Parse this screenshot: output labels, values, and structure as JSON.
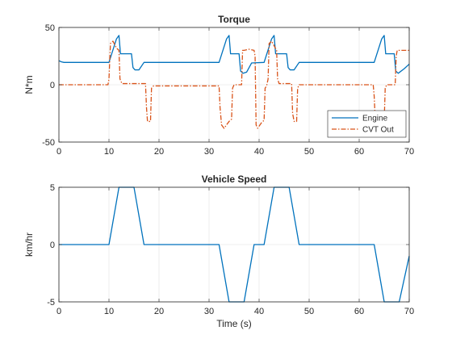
{
  "figure": {
    "background": "#ffffff",
    "grid_color": "#dfdfdf",
    "axis_color": "#262626"
  },
  "chart_data": [
    {
      "type": "line",
      "title": "Torque",
      "xlabel": "",
      "ylabel": "N*m",
      "xlim": [
        0,
        70
      ],
      "ylim": [
        -50,
        50
      ],
      "xticks": [
        0,
        10,
        20,
        30,
        40,
        50,
        60,
        70
      ],
      "yticks": [
        -50,
        0,
        50
      ],
      "grid": true,
      "legend": {
        "placement": "bottom-right",
        "entries": [
          "Engine",
          "CVT Out"
        ]
      },
      "series": [
        {
          "name": "Engine",
          "color": "#0072BD",
          "style": "solid",
          "points": [
            [
              0,
              21
            ],
            [
              0.5,
              20
            ],
            [
              1,
              19.5
            ],
            [
              10,
              19.5
            ],
            [
              11.5,
              40
            ],
            [
              12,
              43
            ],
            [
              12.3,
              27
            ],
            [
              14.5,
              27
            ],
            [
              14.8,
              15
            ],
            [
              15.2,
              13
            ],
            [
              16,
              13
            ],
            [
              17,
              19.5
            ],
            [
              32,
              19.5
            ],
            [
              33.5,
              40
            ],
            [
              34,
              43
            ],
            [
              34.3,
              27
            ],
            [
              36,
              27
            ],
            [
              36.3,
              12
            ],
            [
              36.8,
              10
            ],
            [
              37.5,
              11
            ],
            [
              38.5,
              19
            ],
            [
              41,
              19.5
            ],
            [
              42.5,
              40
            ],
            [
              43,
              43
            ],
            [
              43.3,
              27
            ],
            [
              45.5,
              27
            ],
            [
              45.8,
              15
            ],
            [
              46.2,
              13
            ],
            [
              47,
              13
            ],
            [
              48,
              19.5
            ],
            [
              63,
              19.5
            ],
            [
              64.5,
              40
            ],
            [
              65,
              43
            ],
            [
              65.3,
              27
            ],
            [
              67,
              27
            ],
            [
              67.3,
              12
            ],
            [
              67.8,
              10
            ],
            [
              69,
              14
            ],
            [
              70,
              18
            ]
          ]
        },
        {
          "name": "CVT Out",
          "color": "#D95319",
          "style": "dashdot",
          "points": [
            [
              0,
              0
            ],
            [
              9.8,
              0
            ],
            [
              10,
              5
            ],
            [
              10.3,
              36
            ],
            [
              10.8,
              38
            ],
            [
              11.5,
              32
            ],
            [
              12,
              30
            ],
            [
              12.2,
              5
            ],
            [
              12.6,
              1
            ],
            [
              17.3,
              1
            ],
            [
              17.5,
              -20
            ],
            [
              17.7,
              -32
            ],
            [
              18.3,
              -32
            ],
            [
              18.5,
              -3
            ],
            [
              18.9,
              -1
            ],
            [
              32,
              -1
            ],
            [
              32.2,
              -20
            ],
            [
              32.5,
              -35
            ],
            [
              33,
              -38
            ],
            [
              34,
              -32
            ],
            [
              34.5,
              -30
            ],
            [
              34.7,
              -3
            ],
            [
              35,
              0
            ],
            [
              36.5,
              0
            ],
            [
              36.7,
              30
            ],
            [
              37,
              30
            ],
            [
              38,
              31
            ],
            [
              39,
              30
            ],
            [
              39.2,
              25
            ],
            [
              39.4,
              -35
            ],
            [
              39.7,
              -38
            ],
            [
              40.5,
              -33
            ],
            [
              41,
              -31
            ],
            [
              41.2,
              -3
            ],
            [
              41.5,
              -1
            ],
            [
              41.8,
              5
            ],
            [
              42,
              36
            ],
            [
              42.5,
              38
            ],
            [
              43,
              34
            ],
            [
              43.5,
              30
            ],
            [
              43.7,
              5
            ],
            [
              44,
              1
            ],
            [
              46.5,
              1
            ],
            [
              46.7,
              -25
            ],
            [
              47,
              -32
            ],
            [
              47.5,
              -32
            ],
            [
              47.7,
              -3
            ],
            [
              48,
              0
            ],
            [
              62.8,
              0
            ],
            [
              63,
              -10
            ],
            [
              63.2,
              -30
            ],
            [
              63.5,
              -38
            ],
            [
              64,
              -33
            ],
            [
              65,
              -32
            ],
            [
              65.2,
              -3
            ],
            [
              65.5,
              0
            ],
            [
              67.2,
              0
            ],
            [
              67.4,
              25
            ],
            [
              67.6,
              30
            ],
            [
              70,
              30
            ]
          ]
        }
      ]
    },
    {
      "type": "line",
      "title": "Vehicle Speed",
      "xlabel": "Time (s)",
      "ylabel": "km/hr",
      "xlim": [
        0,
        70
      ],
      "ylim": [
        -5,
        5
      ],
      "xticks": [
        0,
        10,
        20,
        30,
        40,
        50,
        60,
        70
      ],
      "yticks": [
        -5,
        0,
        5
      ],
      "grid": true,
      "series": [
        {
          "color": "#0072BD",
          "style": "solid",
          "points": [
            [
              0,
              0
            ],
            [
              10,
              0
            ],
            [
              12,
              5
            ],
            [
              15,
              5
            ],
            [
              17,
              0
            ],
            [
              32,
              0
            ],
            [
              34,
              -5
            ],
            [
              37,
              -5
            ],
            [
              39,
              0
            ],
            [
              41,
              0
            ],
            [
              43,
              5
            ],
            [
              46,
              5
            ],
            [
              48,
              0
            ],
            [
              63,
              0
            ],
            [
              65,
              -5
            ],
            [
              68,
              -5
            ],
            [
              70,
              -1
            ]
          ]
        }
      ]
    }
  ]
}
